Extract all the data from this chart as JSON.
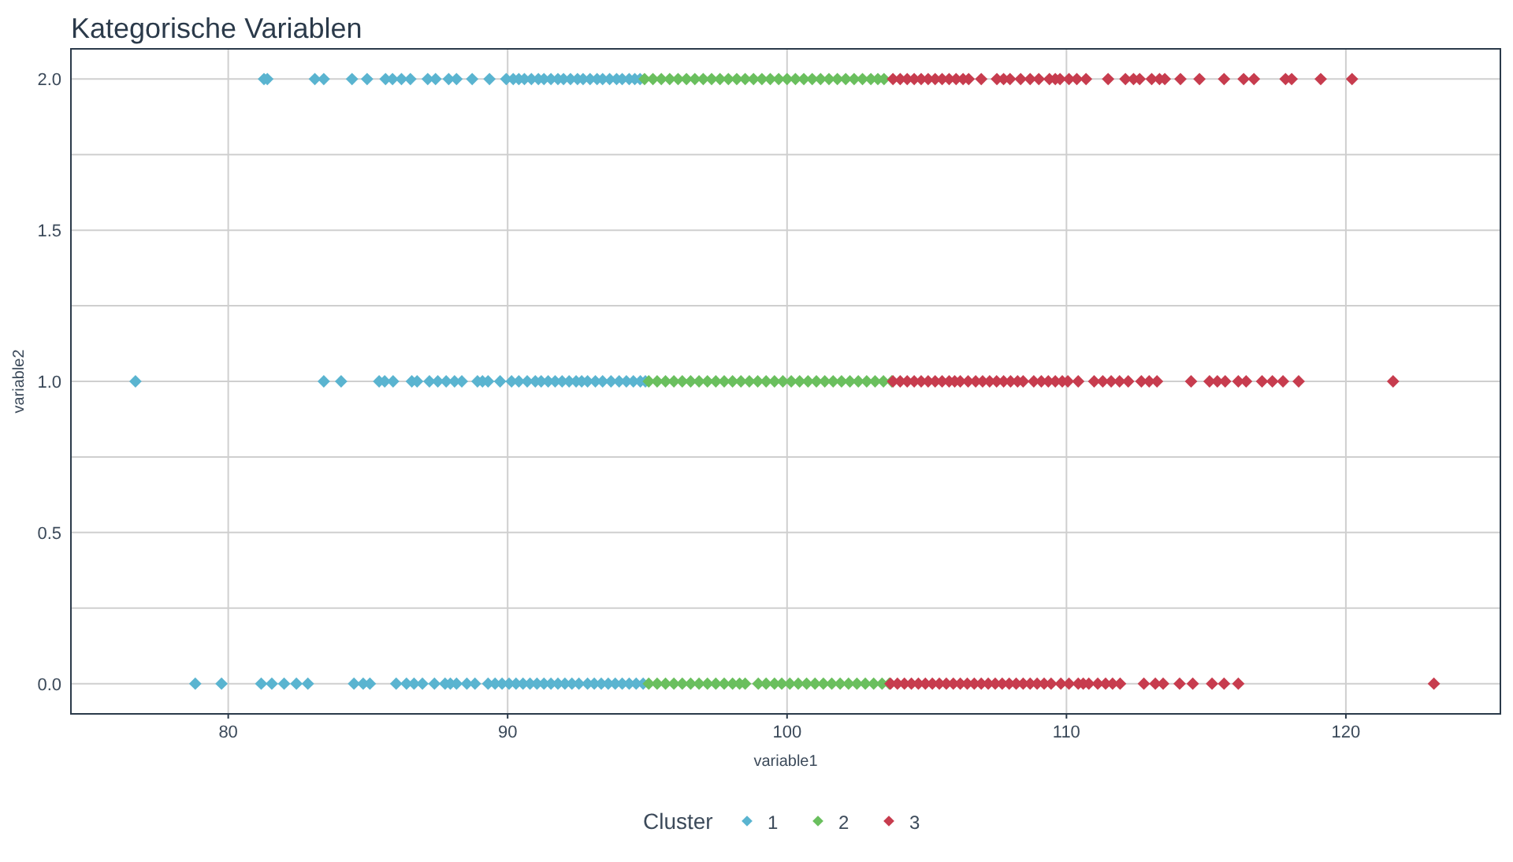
{
  "chart_data": {
    "type": "scatter",
    "title": "Kategorische Variablen",
    "xlabel": "variable1",
    "ylabel": "variable2",
    "legend_title": "Cluster",
    "legend": "bottom",
    "grid": true,
    "marker": "diamond",
    "xlim": [
      74.37,
      125.53
    ],
    "xticks": [
      80,
      90,
      100,
      110,
      120
    ],
    "ylim": [
      -0.1,
      2.1
    ],
    "yticks": [
      {
        "value": 0,
        "label": "0.0"
      },
      {
        "value": 0.25,
        "label": null
      },
      {
        "value": 0.5,
        "label": "0.5"
      },
      {
        "value": 0.75,
        "label": null
      },
      {
        "value": 1,
        "label": "1.0"
      },
      {
        "value": 1.25,
        "label": null
      },
      {
        "value": 1.5,
        "label": "1.5"
      },
      {
        "value": 1.75,
        "label": null
      },
      {
        "value": 2,
        "label": "2.0"
      }
    ],
    "series": [
      {
        "name": "1",
        "color": "#5ab4d0",
        "x": [
          81.28,
          81.4,
          83.1,
          83.42,
          84.43,
          84.97,
          85.63,
          85.88,
          86.2,
          86.52,
          87.14,
          87.42,
          87.89,
          88.17,
          88.73,
          89.35,
          89.95,
          90.2,
          90.4,
          90.6,
          90.85,
          91.1,
          91.3,
          91.55,
          91.8,
          92.0,
          92.25,
          92.5,
          92.7,
          92.95,
          93.2,
          93.4,
          93.65,
          93.9,
          94.1,
          94.35,
          94.55,
          94.74,
          76.68,
          83.42,
          84.04,
          85.4,
          85.6,
          85.9,
          86.57,
          86.76,
          87.2,
          87.5,
          87.8,
          88.1,
          88.36,
          88.92,
          89.1,
          89.3,
          89.73,
          90.14,
          90.4,
          90.7,
          90.99,
          91.2,
          91.45,
          91.7,
          91.95,
          92.2,
          92.45,
          92.65,
          92.86,
          93.14,
          93.4,
          93.7,
          93.99,
          94.25,
          94.5,
          94.75,
          94.93,
          78.82,
          79.76,
          81.18,
          81.56,
          82.0,
          82.44,
          82.85,
          84.5,
          84.83,
          85.07,
          86.01,
          86.38,
          86.65,
          86.95,
          87.38,
          87.76,
          87.95,
          88.17,
          88.54,
          88.83,
          89.3,
          89.55,
          89.8,
          90.05,
          90.3,
          90.55,
          90.8,
          91.05,
          91.3,
          91.55,
          91.8,
          92.05,
          92.3,
          92.55,
          92.86,
          93.1,
          93.35,
          93.6,
          93.85,
          94.1,
          94.35,
          94.6,
          94.85
        ],
        "values": [
          2,
          2,
          2,
          2,
          2,
          2,
          2,
          2,
          2,
          2,
          2,
          2,
          2,
          2,
          2,
          2,
          2,
          2,
          2,
          2,
          2,
          2,
          2,
          2,
          2,
          2,
          2,
          2,
          2,
          2,
          2,
          2,
          2,
          2,
          2,
          2,
          2,
          2,
          1,
          1,
          1,
          1,
          1,
          1,
          1,
          1,
          1,
          1,
          1,
          1,
          1,
          1,
          1,
          1,
          1,
          1,
          1,
          1,
          1,
          1,
          1,
          1,
          1,
          1,
          1,
          1,
          1,
          1,
          1,
          1,
          1,
          1,
          1,
          1,
          1,
          0,
          0,
          0,
          0,
          0,
          0,
          0,
          0,
          0,
          0,
          0,
          0,
          0,
          0,
          0,
          0,
          0,
          0,
          0,
          0,
          0,
          0,
          0,
          0,
          0,
          0,
          0,
          0,
          0,
          0,
          0,
          0,
          0,
          0,
          0,
          0,
          0,
          0,
          0,
          0,
          0,
          0,
          0
        ]
      },
      {
        "name": "2",
        "color": "#6abf5e",
        "x": [
          94.9,
          95.2,
          95.5,
          95.8,
          96.1,
          96.4,
          96.7,
          97.0,
          97.3,
          97.6,
          97.9,
          98.2,
          98.5,
          98.8,
          99.1,
          99.4,
          99.7,
          100.0,
          100.3,
          100.6,
          100.9,
          101.2,
          101.5,
          101.8,
          102.1,
          102.4,
          102.7,
          103.0,
          103.25,
          103.47,
          95.05,
          95.35,
          95.65,
          95.95,
          96.25,
          96.55,
          96.85,
          97.15,
          97.45,
          97.75,
          98.05,
          98.35,
          98.65,
          98.95,
          99.25,
          99.55,
          99.85,
          100.15,
          100.45,
          100.75,
          101.05,
          101.35,
          101.65,
          101.95,
          102.25,
          102.55,
          102.85,
          103.15,
          103.45,
          103.75,
          95.05,
          95.35,
          95.65,
          95.95,
          96.25,
          96.55,
          96.85,
          97.15,
          97.45,
          97.75,
          98.05,
          98.3,
          98.5,
          98.97,
          99.25,
          99.55,
          99.81,
          100.1,
          100.4,
          100.7,
          101.0,
          101.3,
          101.6,
          101.9,
          102.2,
          102.5,
          102.8,
          103.1,
          103.4,
          103.66
        ],
        "values": [
          2,
          2,
          2,
          2,
          2,
          2,
          2,
          2,
          2,
          2,
          2,
          2,
          2,
          2,
          2,
          2,
          2,
          2,
          2,
          2,
          2,
          2,
          2,
          2,
          2,
          2,
          2,
          2,
          2,
          2,
          1,
          1,
          1,
          1,
          1,
          1,
          1,
          1,
          1,
          1,
          1,
          1,
          1,
          1,
          1,
          1,
          1,
          1,
          1,
          1,
          1,
          1,
          1,
          1,
          1,
          1,
          1,
          1,
          1,
          1,
          0,
          0,
          0,
          0,
          0,
          0,
          0,
          0,
          0,
          0,
          0,
          0,
          0,
          0,
          0,
          0,
          0,
          0,
          0,
          0,
          0,
          0,
          0,
          0,
          0,
          0,
          0,
          0,
          0,
          0
        ]
      },
      {
        "name": "3",
        "color": "#c73c4e",
        "x": [
          103.79,
          104.05,
          104.3,
          104.55,
          104.8,
          105.05,
          105.3,
          105.55,
          105.8,
          106.05,
          106.3,
          106.5,
          106.95,
          107.51,
          107.75,
          107.98,
          108.36,
          108.7,
          109.01,
          109.39,
          109.6,
          109.77,
          110.09,
          110.37,
          110.7,
          111.49,
          112.11,
          112.4,
          112.62,
          113.05,
          113.33,
          113.52,
          114.08,
          114.76,
          115.64,
          116.34,
          116.71,
          117.84,
          118.06,
          119.1,
          120.22,
          103.79,
          104.05,
          104.3,
          104.55,
          104.8,
          105.05,
          105.3,
          105.55,
          105.8,
          106.0,
          106.2,
          106.48,
          106.75,
          107.0,
          107.25,
          107.5,
          107.75,
          108.0,
          108.25,
          108.45,
          108.83,
          109.1,
          109.35,
          109.6,
          109.85,
          110.05,
          110.42,
          110.99,
          111.3,
          111.6,
          111.9,
          112.21,
          112.68,
          112.96,
          113.24,
          114.46,
          115.12,
          115.4,
          115.68,
          116.15,
          116.43,
          117.0,
          117.37,
          117.75,
          118.31,
          121.69,
          103.7,
          103.95,
          104.2,
          104.45,
          104.7,
          104.95,
          105.2,
          105.45,
          105.7,
          105.95,
          106.2,
          106.45,
          106.7,
          106.95,
          107.2,
          107.45,
          107.7,
          107.95,
          108.2,
          108.45,
          108.7,
          108.95,
          109.2,
          109.45,
          109.8,
          110.09,
          110.42,
          110.6,
          110.8,
          111.12,
          111.4,
          111.65,
          111.92,
          112.77,
          113.18,
          113.46,
          114.05,
          114.52,
          115.21,
          115.64,
          116.15,
          123.15
        ],
        "values": [
          2,
          2,
          2,
          2,
          2,
          2,
          2,
          2,
          2,
          2,
          2,
          2,
          2,
          2,
          2,
          2,
          2,
          2,
          2,
          2,
          2,
          2,
          2,
          2,
          2,
          2,
          2,
          2,
          2,
          2,
          2,
          2,
          2,
          2,
          2,
          2,
          2,
          2,
          2,
          2,
          2,
          1,
          1,
          1,
          1,
          1,
          1,
          1,
          1,
          1,
          1,
          1,
          1,
          1,
          1,
          1,
          1,
          1,
          1,
          1,
          1,
          1,
          1,
          1,
          1,
          1,
          1,
          1,
          1,
          1,
          1,
          1,
          1,
          1,
          1,
          1,
          1,
          1,
          1,
          1,
          1,
          1,
          1,
          1,
          1,
          1,
          1,
          0,
          0,
          0,
          0,
          0,
          0,
          0,
          0,
          0,
          0,
          0,
          0,
          0,
          0,
          0,
          0,
          0,
          0,
          0,
          0,
          0,
          0,
          0,
          0,
          0,
          0,
          0,
          0,
          0,
          0,
          0,
          0,
          0,
          0,
          0,
          0,
          0,
          0,
          0,
          0,
          0,
          0
        ]
      }
    ]
  }
}
